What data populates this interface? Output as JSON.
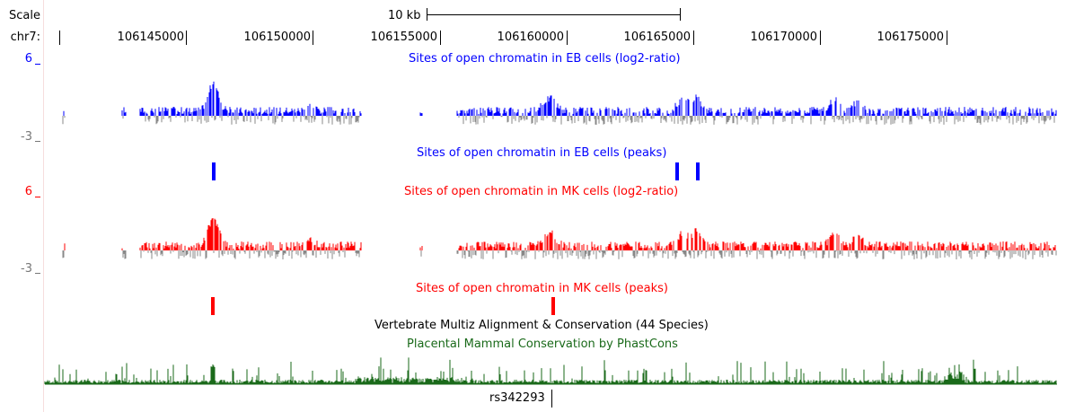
{
  "ruler": {
    "scale_label": "Scale",
    "scale_bar_label": "10 kb",
    "chrom_label": "chr7:",
    "positions": [
      "106145000",
      "106150000",
      "106155000",
      "106160000",
      "106165000",
      "106170000",
      "106175000"
    ]
  },
  "tracks": {
    "eb_signal": {
      "title": "Sites of open chromatin in EB cells (log2-ratio)",
      "ymax_label": "6",
      "ymin_label": "-3",
      "color": "#0000ff",
      "neg_color": "#888888"
    },
    "eb_peaks": {
      "title": "Sites of open chromatin in EB cells (peaks)",
      "color": "#0000ff"
    },
    "mk_signal": {
      "title": "Sites of open chromatin in MK cells (log2-ratio)",
      "ymax_label": "6",
      "ymin_label": "-3",
      "color": "#ff0000",
      "neg_color": "#888888"
    },
    "mk_peaks": {
      "title": "Sites of open chromatin in MK cells (peaks)",
      "color": "#ff0000"
    },
    "multiz": {
      "title": "Vertebrate Multiz Alignment & Conservation (44 Species)"
    },
    "phastcons": {
      "title": "Placental Mammal Conservation by PhastCons",
      "color": "#1a6a1a"
    },
    "snp": {
      "label": "rs342293"
    }
  }
}
